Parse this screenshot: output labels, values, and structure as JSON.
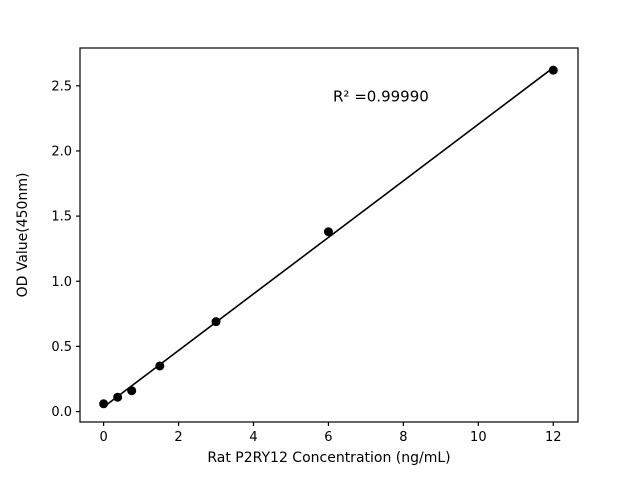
{
  "chart_data": {
    "type": "scatter",
    "title": "",
    "xlabel": "Rat P2RY12 Concentration (ng/mL)",
    "ylabel": "OD Value(450nm)",
    "annotation": "R² =0.99990",
    "annotation_pos": {
      "x": 7.4,
      "y": 2.38
    },
    "x": [
      0,
      0.375,
      0.75,
      1.5,
      3,
      6,
      12
    ],
    "y": [
      0.06,
      0.11,
      0.16,
      0.35,
      0.69,
      1.38,
      2.62
    ],
    "xticks": [
      0,
      2,
      4,
      6,
      8,
      10,
      12
    ],
    "yticks": [
      0.0,
      0.5,
      1.0,
      1.5,
      2.0,
      2.5
    ],
    "xlim": [
      -0.63,
      12.66
    ],
    "ylim": [
      -0.08,
      2.79
    ],
    "grid": false,
    "legend": "none",
    "marker_color": "#000000",
    "line_color": "#000000",
    "axis_color": "#000000"
  }
}
